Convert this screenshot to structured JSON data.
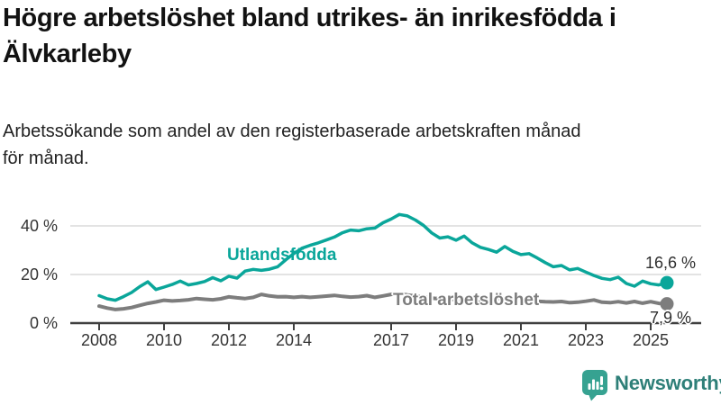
{
  "header": {
    "title": "Högre arbetslöshet bland utrikes- än inrikesfödda i\nÄlvkarleby",
    "subtitle": "Arbetssökande som andel av den registerbaserade arbetskraften månad\nför månad."
  },
  "colors": {
    "accent_teal": "#0aa69a",
    "series_gray": "#7d7d7d",
    "axis_dark": "#3f3f3f",
    "gridline": "#dadada",
    "tick_text": "#333333",
    "logo_teal_icon": "#36a291",
    "logo_teal_text": "#2e7f78"
  },
  "chart_data": {
    "type": "line",
    "title": "",
    "xlabel": "",
    "ylabel": "",
    "grid": "horizontal",
    "legend_position": "inline-labels",
    "xlim": [
      2007.2,
      2026.2
    ],
    "ylim": [
      0,
      47
    ],
    "x_tick_years": [
      2008,
      2010,
      2012,
      2014,
      2017,
      2019,
      2021,
      2023,
      2025
    ],
    "x_tick_labels": [
      "2008",
      "2010",
      "2012",
      "2014",
      "2017",
      "2019",
      "2021",
      "2023",
      "2025"
    ],
    "y_ticks": [
      {
        "value": 0,
        "label": "0 %"
      },
      {
        "value": 20,
        "label": "20 %"
      },
      {
        "value": 40,
        "label": "40 %"
      }
    ],
    "x_start": 2008.0,
    "x_step": 0.25,
    "series": [
      {
        "name": "Utlandsfödda",
        "color": "#0aa69a",
        "line_width": 3.5,
        "end_value": 16.6,
        "end_label": "16,6 %",
        "values": [
          11.3,
          10.0,
          9.4,
          10.9,
          12.6,
          15.0,
          17.0,
          13.8,
          14.8,
          15.9,
          17.3,
          15.7,
          16.3,
          17.1,
          18.7,
          17.4,
          19.3,
          18.5,
          21.4,
          22.1,
          21.7,
          22.2,
          23.2,
          26.0,
          28.6,
          30.8,
          32.0,
          33.0,
          34.2,
          35.4,
          37.2,
          38.3,
          38.0,
          38.8,
          39.1,
          41.3,
          42.8,
          44.7,
          44.1,
          42.4,
          40.2,
          37.1,
          35.0,
          35.5,
          34.1,
          35.8,
          33.0,
          31.2,
          30.3,
          29.2,
          31.5,
          29.5,
          28.2,
          28.6,
          26.8,
          24.9,
          23.2,
          23.7,
          21.9,
          22.5,
          21.0,
          19.6,
          18.4,
          17.9,
          18.9,
          16.3,
          15.2,
          17.3,
          16.2,
          15.7,
          16.6
        ]
      },
      {
        "name": "Total arbetslöshet",
        "color": "#7d7d7d",
        "line_width": 4,
        "end_value": 7.9,
        "end_label": "7,9 %",
        "values": [
          7.0,
          6.2,
          5.6,
          5.9,
          6.4,
          7.3,
          8.1,
          8.7,
          9.4,
          9.1,
          9.3,
          9.6,
          10.1,
          9.8,
          9.6,
          10.0,
          10.8,
          10.4,
          10.1,
          10.6,
          11.8,
          11.2,
          10.8,
          10.9,
          10.6,
          10.9,
          10.6,
          10.8,
          11.1,
          11.4,
          11.0,
          10.7,
          10.9,
          11.3,
          10.6,
          11.2,
          11.8,
          12.2,
          11.6,
          11.1,
          10.7,
          10.3,
          10.0,
          9.8,
          9.6,
          9.8,
          9.4,
          9.2,
          9.5,
          10.1,
          10.2,
          9.8,
          9.6,
          9.3,
          9.0,
          8.8,
          8.7,
          8.9,
          8.4,
          8.6,
          9.0,
          9.5,
          8.6,
          8.4,
          8.8,
          8.3,
          8.9,
          8.2,
          8.8,
          8.1,
          7.9
        ]
      }
    ]
  },
  "branding": {
    "logo_text": "Newsworthy"
  }
}
